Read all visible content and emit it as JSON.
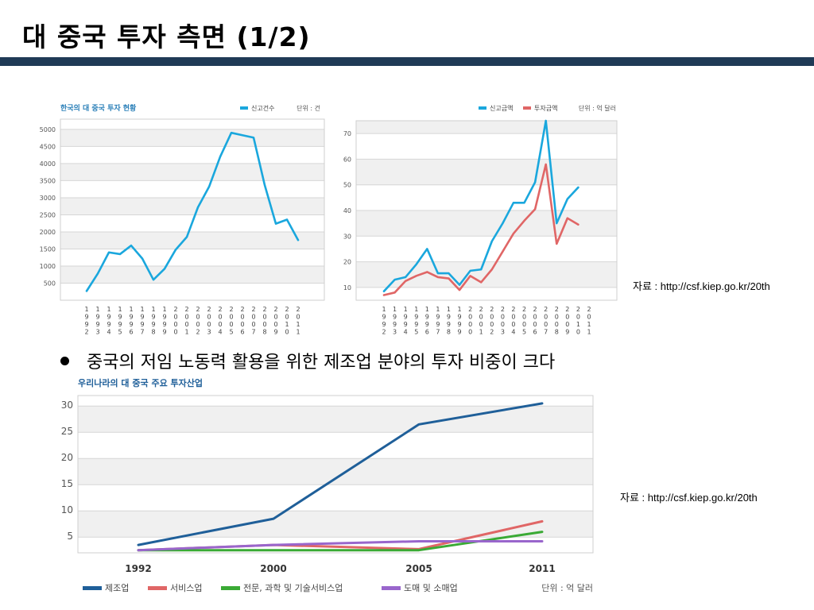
{
  "page": {
    "title": "대 중국 투자 측면 (1/2)",
    "bullet": "중국의 저임 노동력 활용을 위한 제조업 분야의 투자 비중이 크다",
    "source1": "자료 : http://csf.kiep.go.kr/20th",
    "source2": "자료 : http://csf.kiep.go.kr/20th"
  },
  "colors": {
    "title_bar": "#1f3a56",
    "blue": "#1aa7dd",
    "red": "#e06666",
    "navy": "#1f5f99",
    "green": "#3aaa35",
    "purple": "#9966cc"
  },
  "chart_data": [
    {
      "type": "line",
      "title": "한국의 대 중국 투자 현황",
      "unit": "단위 : 건",
      "x": [
        "1992",
        "1993",
        "1994",
        "1995",
        "1996",
        "1997",
        "1998",
        "1999",
        "2000",
        "2001",
        "2002",
        "2003",
        "2004",
        "2005",
        "2006",
        "2007",
        "2008",
        "2009",
        "2010",
        "2011"
      ],
      "ylim": [
        0,
        5300
      ],
      "yticks": [
        500,
        1000,
        1500,
        2000,
        2500,
        3000,
        3500,
        4000,
        4500,
        5000
      ],
      "grid": true,
      "legend_position": "top-right",
      "series": [
        {
          "name": "신고건수",
          "color": "#1aa7dd",
          "values": [
            270,
            780,
            1400,
            1350,
            1600,
            1220,
            600,
            920,
            1480,
            1850,
            2720,
            3320,
            4200,
            4900,
            4830,
            4760,
            3370,
            2240,
            2360,
            1760
          ]
        }
      ]
    },
    {
      "type": "line",
      "unit": "단위 : 억 달러",
      "x": [
        "1992",
        "1993",
        "1994",
        "1995",
        "1996",
        "1997",
        "1998",
        "1999",
        "2000",
        "2001",
        "2002",
        "2003",
        "2004",
        "2005",
        "2006",
        "2007",
        "2008",
        "2009",
        "2010",
        "2011"
      ],
      "ylim": [
        5,
        75
      ],
      "yticks": [
        10,
        20,
        30,
        40,
        50,
        60,
        70
      ],
      "grid": true,
      "legend_position": "top-right",
      "series": [
        {
          "name": "신고금액",
          "color": "#1aa7dd",
          "values": [
            8.5,
            13,
            14,
            19,
            25,
            15.5,
            15.5,
            11,
            16.5,
            17,
            28,
            35,
            43,
            43,
            51,
            75,
            35,
            44.5,
            49,
            null
          ]
        },
        {
          "name": "투자금액",
          "color": "#e06666",
          "values": [
            7,
            8,
            12.5,
            14.5,
            16,
            14,
            13.5,
            9,
            14.5,
            12,
            17,
            24,
            31,
            36,
            40.5,
            58,
            27,
            37,
            34.5,
            null
          ]
        }
      ]
    },
    {
      "type": "line",
      "title": "우리나라의 대 중국 주요 투자산업",
      "unit": "단위 : 억 달러",
      "x": [
        "1992",
        "2000",
        "2005",
        "2011"
      ],
      "ylim": [
        2,
        32
      ],
      "yticks": [
        5,
        10,
        15,
        20,
        25,
        30
      ],
      "grid": true,
      "legend_position": "bottom",
      "series": [
        {
          "name": "제조업",
          "color": "#1f5f99",
          "values": [
            3.5,
            8.5,
            26.5,
            30.5
          ]
        },
        {
          "name": "서비스업",
          "color": "#e06666",
          "values": [
            2.5,
            3.5,
            2.7,
            8
          ]
        },
        {
          "name": "전문, 과학 및 기술서비스업",
          "color": "#3aaa35",
          "values": [
            2.5,
            2.5,
            2.5,
            6
          ]
        },
        {
          "name": "도매 및 소매업",
          "color": "#9966cc",
          "values": [
            2.5,
            3.5,
            4.2,
            4.2
          ]
        }
      ]
    }
  ]
}
